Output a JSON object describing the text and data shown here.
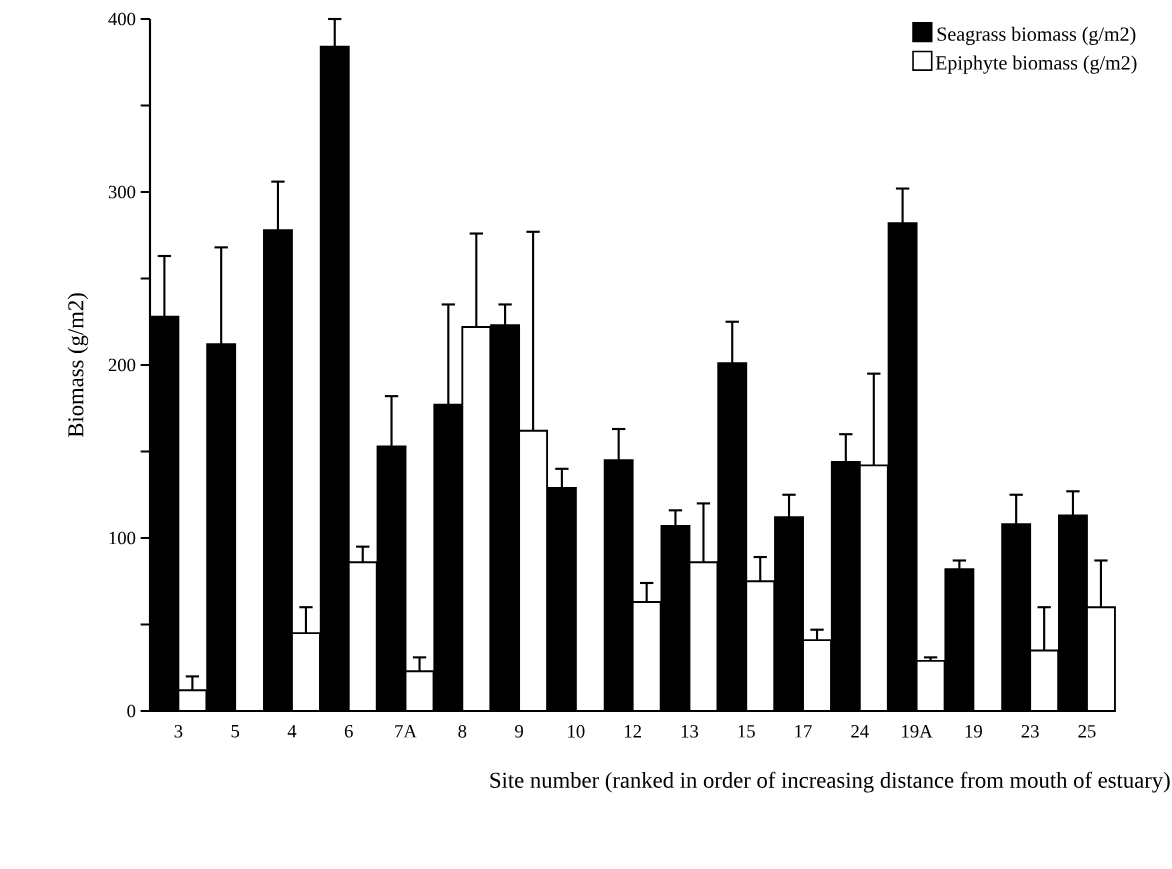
{
  "chart_data": {
    "type": "bar",
    "xlabel": "Site number (ranked in order of increasing distance from mouth of estuary)",
    "ylabel": "Biomass (g/m2)",
    "categories": [
      "3",
      "5",
      "4",
      "6",
      "7A",
      "8",
      "9",
      "10",
      "12",
      "13",
      "15",
      "17",
      "24",
      "19A",
      "19",
      "23",
      "25"
    ],
    "series": [
      {
        "name": "Seagrass biomass (g/m2)",
        "color": "#000000",
        "values": [
          228,
          212,
          278,
          384,
          153,
          177,
          223,
          129,
          145,
          107,
          201,
          112,
          144,
          282,
          82,
          108,
          113
        ],
        "errors": [
          [
            228,
            263
          ],
          [
            212,
            268
          ],
          [
            278,
            306
          ],
          [
            384,
            400
          ],
          [
            153,
            182
          ],
          [
            177,
            235
          ],
          [
            223,
            235
          ],
          [
            129,
            140
          ],
          [
            145,
            163
          ],
          [
            107,
            116
          ],
          [
            201,
            225
          ],
          [
            112,
            125
          ],
          [
            144,
            160
          ],
          [
            282,
            302
          ],
          [
            82,
            87
          ],
          [
            108,
            125
          ],
          [
            113,
            127
          ]
        ]
      },
      {
        "name": "Epiphyte biomass (g/m2)",
        "color": "#ffffff",
        "values": [
          12,
          null,
          45,
          86,
          23,
          222,
          162,
          null,
          63,
          86,
          75,
          41,
          142,
          29,
          null,
          35,
          60
        ],
        "errors": [
          [
            12,
            20
          ],
          null,
          [
            45,
            60
          ],
          [
            86,
            95
          ],
          [
            23,
            31
          ],
          [
            222,
            276
          ],
          [
            162,
            277
          ],
          null,
          [
            63,
            74
          ],
          [
            86,
            120
          ],
          [
            75,
            89
          ],
          [
            41,
            47
          ],
          [
            142,
            195
          ],
          [
            29,
            31
          ],
          null,
          [
            35,
            60
          ],
          [
            60,
            87
          ]
        ]
      }
    ],
    "ylim": [
      0,
      400
    ],
    "yticks": [
      0,
      {
        "value": 50,
        "label": null
      },
      100,
      {
        "value": 150,
        "label": null
      },
      200,
      {
        "value": 250,
        "label": null
      },
      300,
      {
        "value": 350,
        "label": null
      },
      400
    ],
    "grid": false,
    "legend": "top right"
  }
}
